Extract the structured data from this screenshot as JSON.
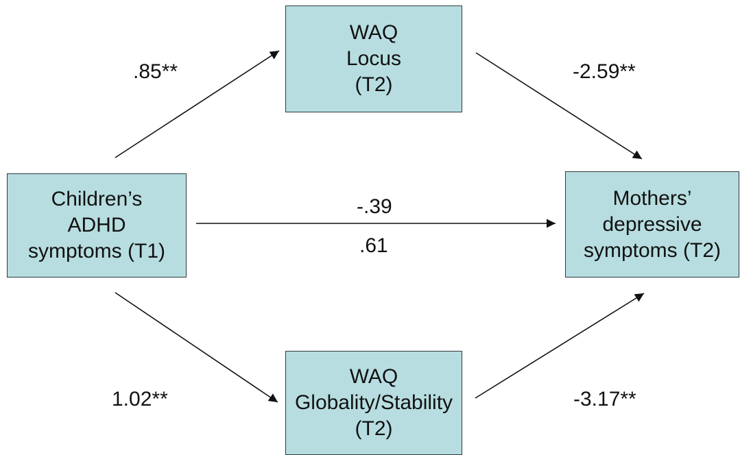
{
  "nodes": {
    "adhd": {
      "lines": [
        "Children’s",
        "ADHD",
        "symptoms  (T1)"
      ]
    },
    "locus": {
      "lines": [
        "WAQ",
        "Locus",
        "(T2)"
      ]
    },
    "globality": {
      "lines": [
        "WAQ",
        "Globality/Stability",
        "(T2)"
      ]
    },
    "mothers": {
      "lines": [
        "Mothers’",
        "depressive",
        "symptoms  (T2)"
      ]
    }
  },
  "paths": {
    "adhd_to_locus": ".85**",
    "locus_to_mothers": "-2.59**",
    "adhd_to_mothers_top": "-.39",
    "adhd_to_mothers_bottom": ".61",
    "adhd_to_globality": "1.02**",
    "globality_to_mothers": "-3.17**"
  },
  "colors": {
    "box_fill": "#b7dde0",
    "box_border": "#2f3a3a",
    "arrow": "#111111"
  }
}
